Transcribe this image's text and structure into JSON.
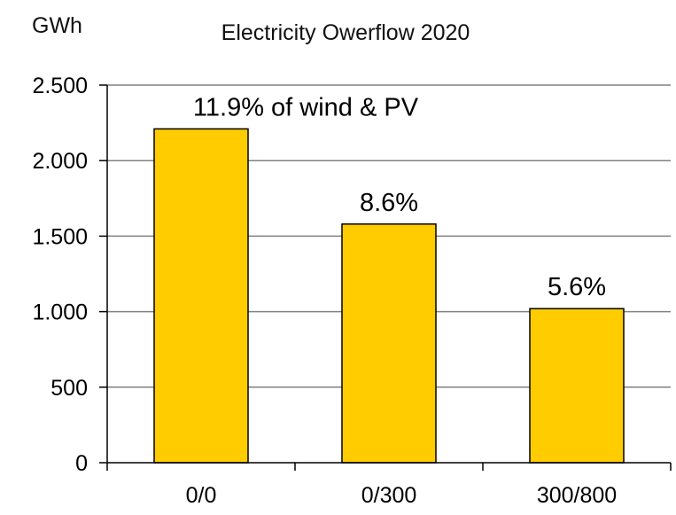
{
  "chart_data": {
    "type": "bar",
    "title": "Electricity Owerflow 2020",
    "ylabel": "GWh",
    "xlabel": "",
    "categories": [
      "0/0",
      "0/300",
      "300/800"
    ],
    "values": [
      2210,
      1580,
      1020
    ],
    "data_labels": [
      "11.9% of wind & PV",
      "8.6%",
      "5.6%"
    ],
    "ylim": [
      0,
      2500
    ],
    "yticks": [
      0,
      500,
      1000,
      1500,
      2000,
      2500
    ],
    "ytick_labels": [
      "0",
      "500",
      "1.000",
      "1.500",
      "2.000",
      "2.500"
    ],
    "grid": true,
    "legend": "none",
    "bar_color": "#FFCC00",
    "bar_edge_color": "#000000",
    "grid_color": "#808080"
  }
}
